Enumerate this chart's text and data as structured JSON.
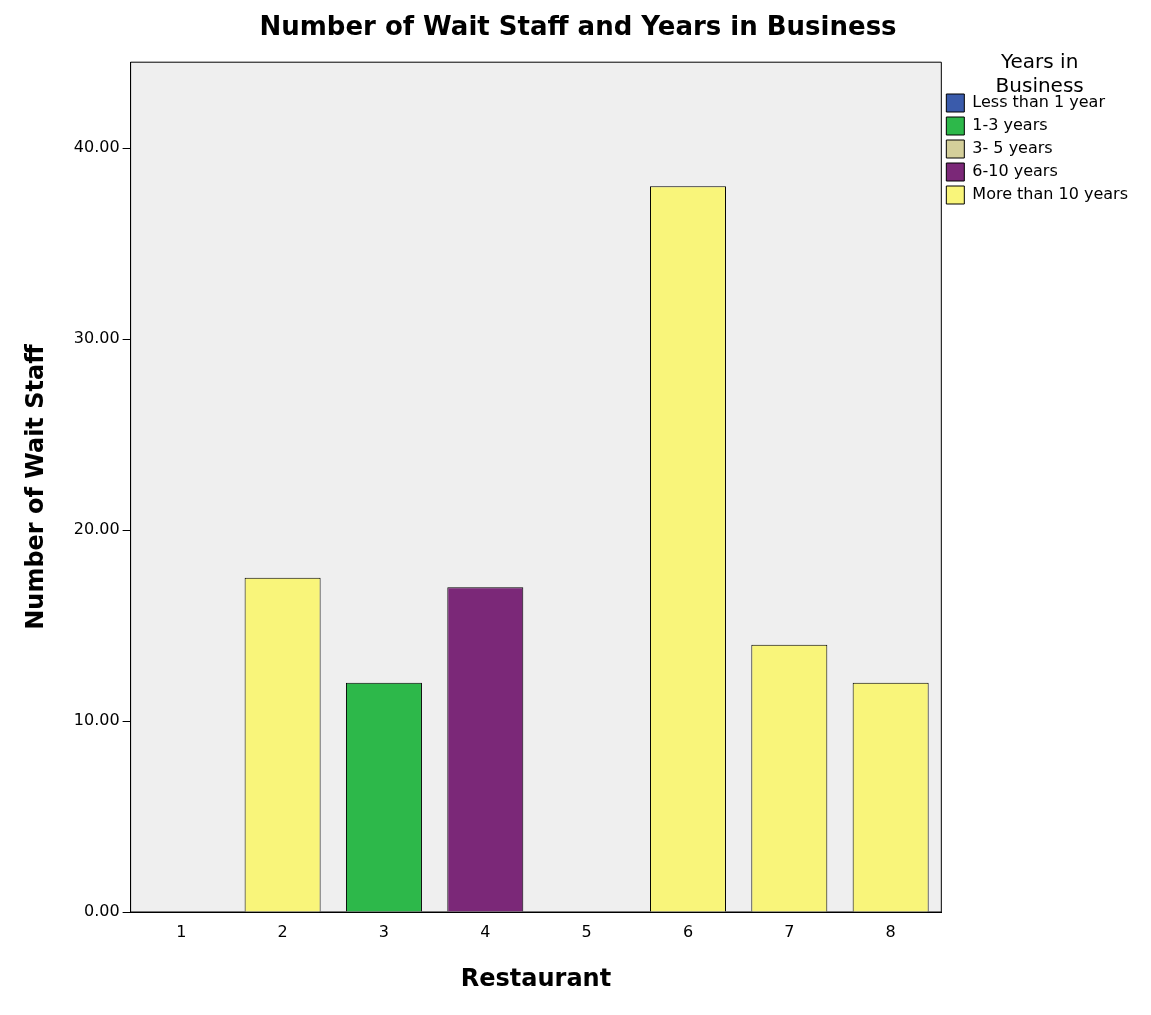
{
  "chart_data": {
    "type": "bar",
    "title": "Number of Wait Staff and Years in Business",
    "xlabel": "Restaurant",
    "ylabel": "Number of Wait Staff",
    "legend_title": "Years in Business",
    "categories": [
      "1",
      "2",
      "3",
      "4",
      "5",
      "6",
      "7",
      "8"
    ],
    "stacked": true,
    "series": [
      {
        "name": "Less than 1 year",
        "color": "#3a5bab",
        "values": [
          null,
          null,
          null,
          null,
          null,
          null,
          null,
          null
        ]
      },
      {
        "name": "1-3 years",
        "color": "#2db84a",
        "values": [
          null,
          null,
          12,
          null,
          null,
          null,
          null,
          null
        ]
      },
      {
        "name": "3- 5 years",
        "color": "#d4cf9a",
        "values": [
          null,
          null,
          null,
          null,
          null,
          null,
          null,
          null
        ]
      },
      {
        "name": "6-10 years",
        "color": "#7b2878",
        "values": [
          null,
          null,
          null,
          17,
          null,
          null,
          null,
          null
        ]
      },
      {
        "name": "More than 10 years",
        "color": "#f9f57a",
        "values": [
          null,
          17.5,
          null,
          null,
          null,
          38,
          14,
          12
        ]
      }
    ],
    "ylim": [
      0,
      44.5
    ],
    "yticks": [
      {
        "value": 0,
        "label": "0.00"
      },
      {
        "value": 10,
        "label": "10.00"
      },
      {
        "value": 20,
        "label": "20.00"
      },
      {
        "value": 30,
        "label": "30.00"
      },
      {
        "value": 40,
        "label": "40.00"
      }
    ],
    "grid": false,
    "legend": "right"
  }
}
